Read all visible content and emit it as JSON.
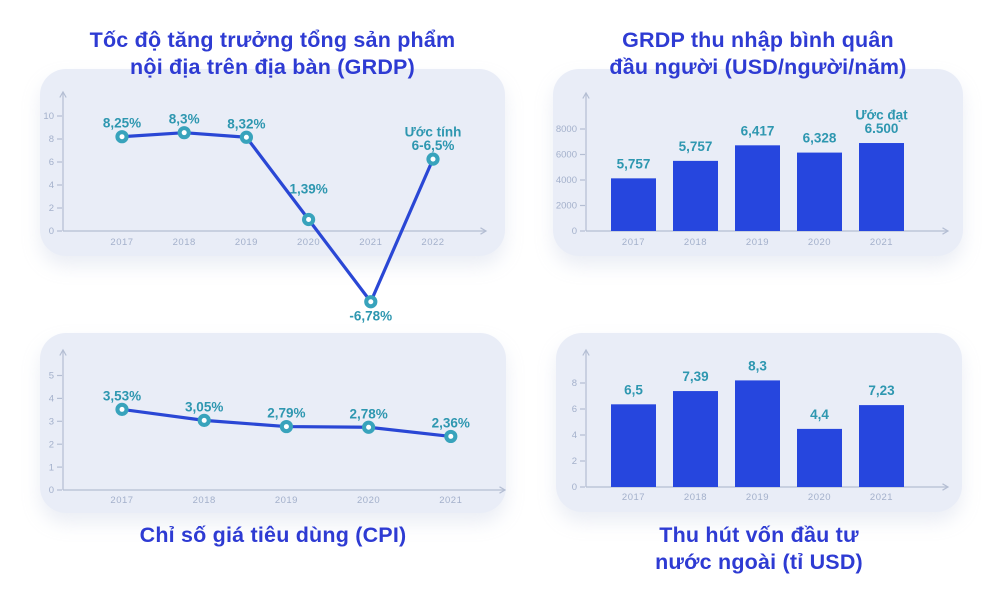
{
  "colors": {
    "background": "#ffffff",
    "card_bg": "#e9edf7",
    "title_blue": "#2e3bd3",
    "bar_fill": "#2646de",
    "line_stroke": "#2a47d5",
    "marker_ring": "#38a3bc",
    "marker_hole": "#ffffff",
    "data_label_teal": "#2e97b0",
    "axis_line": "#b4bed3",
    "tick_text": "#a3b0cb"
  },
  "chart_data": [
    {
      "id": "grdp-growth",
      "type": "line",
      "title_lines": [
        "Tốc độ tăng trưởng tổng sản phẩm",
        "nội địa trên địa bàn (GRDP)"
      ],
      "categories": [
        "2017",
        "2018",
        "2019",
        "2020",
        "2021",
        "2022"
      ],
      "values": [
        8.25,
        8.3,
        8.32,
        1.39,
        -6.78,
        6.25
      ],
      "values_drawn": [
        8.2,
        8.55,
        8.15,
        1.0,
        -6.15,
        6.25
      ],
      "point_labels": [
        "8,25%",
        "8,3%",
        "8,32%",
        "1,39%",
        "-6,78%",
        "Ước tính\n6-6,5%"
      ],
      "note": "2022 là ước tính 6-6,5%",
      "unit": "%",
      "yticks": [
        0,
        2,
        4,
        6,
        8,
        10
      ],
      "ylim": [
        -8,
        10
      ],
      "grid": false,
      "legend": false
    },
    {
      "id": "grdp-per-capita",
      "type": "bar",
      "title_lines": [
        "GRDP thu nhập bình quân",
        "đầu người (USD/người/năm)"
      ],
      "categories": [
        "2017",
        "2018",
        "2019",
        "2020",
        "2021"
      ],
      "values": [
        5757,
        5757,
        6417,
        6328,
        6500
      ],
      "values_drawn": [
        4130,
        5500,
        6720,
        6150,
        6900
      ],
      "point_labels": [
        "5,757",
        "5,757",
        "6,417",
        "6,328",
        "Ước đạt\n6.500"
      ],
      "note": "2021 là ước đạt 6.500",
      "unit": "USD/người/năm",
      "yticks": [
        0,
        2000,
        4000,
        6000,
        8000
      ],
      "ylim": [
        0,
        8000
      ],
      "grid": false,
      "legend": false
    },
    {
      "id": "cpi",
      "type": "line",
      "title_lines": [
        "Chỉ số giá tiêu dùng (CPI)"
      ],
      "categories": [
        "2017",
        "2018",
        "2019",
        "2020",
        "2021"
      ],
      "values": [
        3.53,
        3.05,
        2.79,
        2.78,
        2.36
      ],
      "values_drawn": [
        3.52,
        3.04,
        2.77,
        2.74,
        2.34
      ],
      "point_labels": [
        "3,53%",
        "3,05%",
        "2,79%",
        "2,78%",
        "2,36%"
      ],
      "unit": "%",
      "yticks": [
        0,
        1,
        2,
        3,
        4,
        5
      ],
      "ylim": [
        0,
        5
      ],
      "grid": false,
      "legend": false
    },
    {
      "id": "fdi",
      "type": "bar",
      "title_lines": [
        "Thu hút vốn đầu tư",
        "nước ngoài (tỉ USD)"
      ],
      "categories": [
        "2017",
        "2018",
        "2019",
        "2020",
        "2021"
      ],
      "values": [
        6.5,
        7.39,
        8.3,
        4.4,
        7.23
      ],
      "values_drawn": [
        6.36,
        7.38,
        8.2,
        4.47,
        6.3
      ],
      "point_labels": [
        "6,5",
        "7,39",
        "8,3",
        "4,4",
        "7,23"
      ],
      "unit": "tỉ USD",
      "yticks": [
        0,
        2,
        4,
        6,
        8
      ],
      "ylim": [
        0,
        8
      ],
      "grid": false,
      "legend": false
    }
  ]
}
